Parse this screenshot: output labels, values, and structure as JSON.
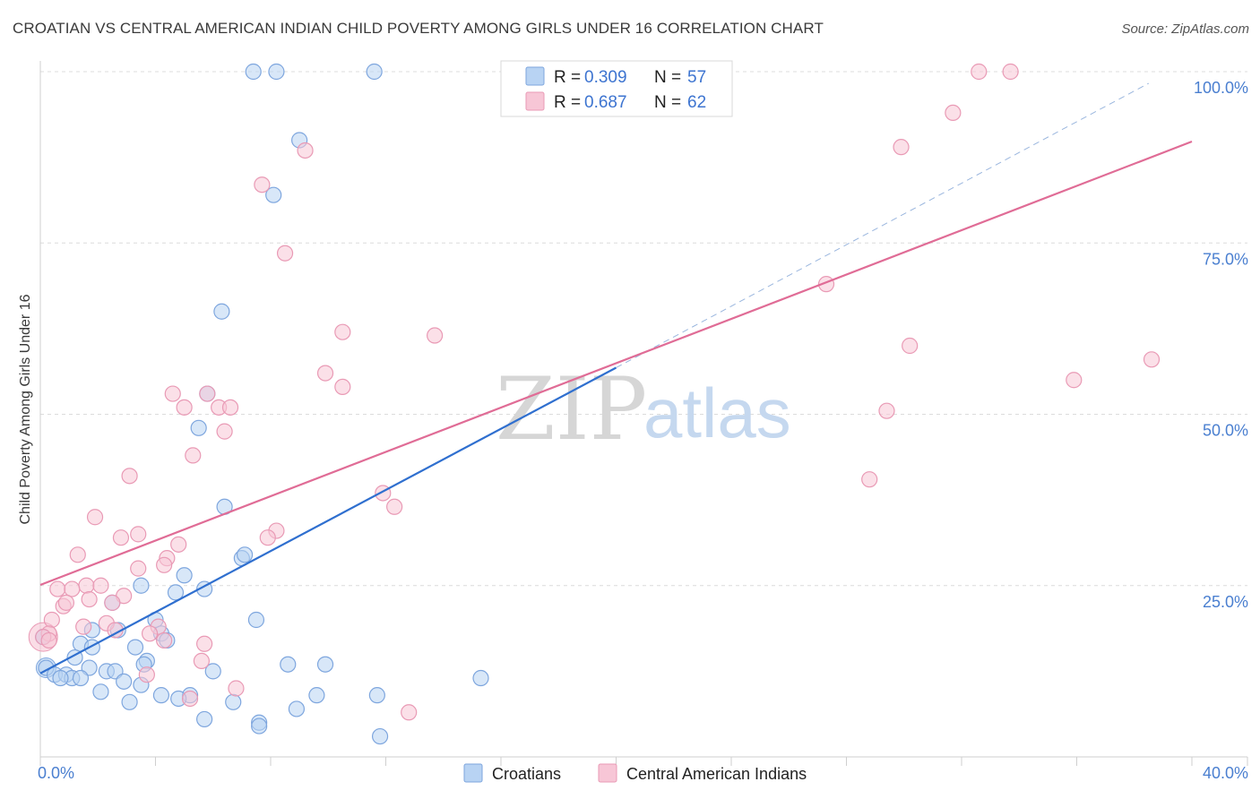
{
  "title": "CROATIAN VS CENTRAL AMERICAN INDIAN CHILD POVERTY AMONG GIRLS UNDER 16 CORRELATION CHART",
  "source": "Source: ZipAtlas.com",
  "watermark": {
    "zip": "ZIP",
    "atlas": "atlas"
  },
  "colors": {
    "croatians_fill": "#b8d3f3",
    "croatians_stroke": "#7ea6de",
    "croatians_line": "#2f6fcf",
    "cai_fill": "#f7c6d6",
    "cai_stroke": "#e99ab5",
    "cai_line": "#e06c96",
    "tick_label": "#4a7fd0",
    "grid": "#dcdcdc"
  },
  "legend": {
    "r_label": "R =",
    "n_label": "N =",
    "rows": [
      {
        "r": "0.309",
        "n": "57"
      },
      {
        "r": "0.687",
        "n": "62"
      }
    ]
  },
  "chart_data": {
    "type": "scatter",
    "title": "CROATIAN VS CENTRAL AMERICAN INDIAN CHILD POVERTY AMONG GIRLS UNDER 16 CORRELATION CHART",
    "xlabel": "",
    "ylabel": "Child Poverty Among Girls Under 16",
    "xlim": [
      0,
      40
    ],
    "ylim": [
      0,
      100
    ],
    "x_tick_labels": [
      "0.0%",
      "40.0%"
    ],
    "y_ticks": [
      25,
      50,
      75,
      100
    ],
    "y_tick_labels": [
      "25.0%",
      "50.0%",
      "75.0%",
      "100.0%"
    ],
    "grid": true,
    "legend_position": "top-center",
    "series": [
      {
        "name": "Croatians",
        "r": 0.309,
        "n": 57,
        "trend": {
          "x0": 0,
          "y0": 12.2,
          "x1": 20,
          "y1": 56.8,
          "extend_to_x": 38.5,
          "extend_to_y": 98.3
        },
        "points": [
          [
            7.4,
            100
          ],
          [
            8.2,
            100
          ],
          [
            11.6,
            100
          ],
          [
            9.0,
            90
          ],
          [
            8.1,
            82
          ],
          [
            6.3,
            65
          ],
          [
            5.8,
            53
          ],
          [
            5.5,
            48
          ],
          [
            6.4,
            36.5
          ],
          [
            7.0,
            29
          ],
          [
            7.1,
            29.5
          ],
          [
            3.5,
            25
          ],
          [
            5.0,
            26.5
          ],
          [
            4.7,
            24
          ],
          [
            5.7,
            24.5
          ],
          [
            2.5,
            22.5
          ],
          [
            4.0,
            20
          ],
          [
            7.5,
            20
          ],
          [
            1.8,
            18.5
          ],
          [
            2.7,
            18.5
          ],
          [
            4.2,
            18
          ],
          [
            4.4,
            17
          ],
          [
            1.4,
            16.5
          ],
          [
            1.8,
            16
          ],
          [
            3.3,
            16
          ],
          [
            0.1,
            17.5
          ],
          [
            1.2,
            14.5
          ],
          [
            3.7,
            14
          ],
          [
            3.6,
            13.5
          ],
          [
            8.6,
            13.5
          ],
          [
            9.9,
            13.5
          ],
          [
            0.2,
            13
          ],
          [
            1.7,
            13
          ],
          [
            2.3,
            12.5
          ],
          [
            2.6,
            12.5
          ],
          [
            6.0,
            12.5
          ],
          [
            0.5,
            12
          ],
          [
            0.9,
            12
          ],
          [
            1.1,
            11.5
          ],
          [
            0.7,
            11.5
          ],
          [
            1.4,
            11.5
          ],
          [
            2.9,
            11
          ],
          [
            15.3,
            11.5
          ],
          [
            3.5,
            10.5
          ],
          [
            2.1,
            9.5
          ],
          [
            4.2,
            9
          ],
          [
            5.2,
            9
          ],
          [
            9.6,
            9
          ],
          [
            11.7,
            9
          ],
          [
            4.8,
            8.5
          ],
          [
            3.1,
            8
          ],
          [
            6.7,
            8
          ],
          [
            8.9,
            7
          ],
          [
            5.7,
            5.5
          ],
          [
            7.6,
            5
          ],
          [
            7.6,
            4.5
          ],
          [
            11.8,
            3
          ]
        ]
      },
      {
        "name": "Central American Indians",
        "r": 0.687,
        "n": 62,
        "trend": {
          "x0": 0,
          "y0": 25.1,
          "x1": 40,
          "y1": 89.8
        },
        "points": [
          [
            32.6,
            100
          ],
          [
            33.7,
            100
          ],
          [
            31.7,
            94
          ],
          [
            29.9,
            89
          ],
          [
            9.2,
            88.5
          ],
          [
            7.7,
            83.5
          ],
          [
            8.5,
            73.5
          ],
          [
            27.3,
            69
          ],
          [
            10.5,
            62
          ],
          [
            13.7,
            61.5
          ],
          [
            30.2,
            60
          ],
          [
            38.6,
            58
          ],
          [
            9.9,
            56
          ],
          [
            35.9,
            55
          ],
          [
            10.5,
            54
          ],
          [
            4.6,
            53
          ],
          [
            5.8,
            53
          ],
          [
            5.0,
            51
          ],
          [
            6.2,
            51
          ],
          [
            6.6,
            51
          ],
          [
            29.4,
            50.5
          ],
          [
            6.4,
            47.5
          ],
          [
            5.3,
            44
          ],
          [
            3.1,
            41
          ],
          [
            28.8,
            40.5
          ],
          [
            11.9,
            38.5
          ],
          [
            12.3,
            36.5
          ],
          [
            1.9,
            35
          ],
          [
            8.2,
            33
          ],
          [
            3.4,
            32.5
          ],
          [
            2.8,
            32
          ],
          [
            7.9,
            32
          ],
          [
            4.8,
            31
          ],
          [
            1.3,
            29.5
          ],
          [
            4.4,
            29
          ],
          [
            3.4,
            27.5
          ],
          [
            4.3,
            28
          ],
          [
            1.6,
            25
          ],
          [
            2.1,
            25
          ],
          [
            0.6,
            24.5
          ],
          [
            1.1,
            24.5
          ],
          [
            2.9,
            23.5
          ],
          [
            1.7,
            23
          ],
          [
            2.5,
            22.5
          ],
          [
            0.8,
            22
          ],
          [
            0.9,
            22.5
          ],
          [
            0.4,
            20
          ],
          [
            1.5,
            19
          ],
          [
            2.3,
            19.5
          ],
          [
            4.1,
            19
          ],
          [
            2.6,
            18.5
          ],
          [
            0.3,
            18
          ],
          [
            3.8,
            18
          ],
          [
            4.3,
            17
          ],
          [
            0.1,
            17.5
          ],
          [
            5.7,
            16.5
          ],
          [
            5.6,
            14
          ],
          [
            3.7,
            12
          ],
          [
            6.8,
            10
          ],
          [
            5.2,
            8.5
          ],
          [
            12.8,
            6.5
          ],
          [
            0.3,
            17
          ]
        ]
      }
    ]
  }
}
